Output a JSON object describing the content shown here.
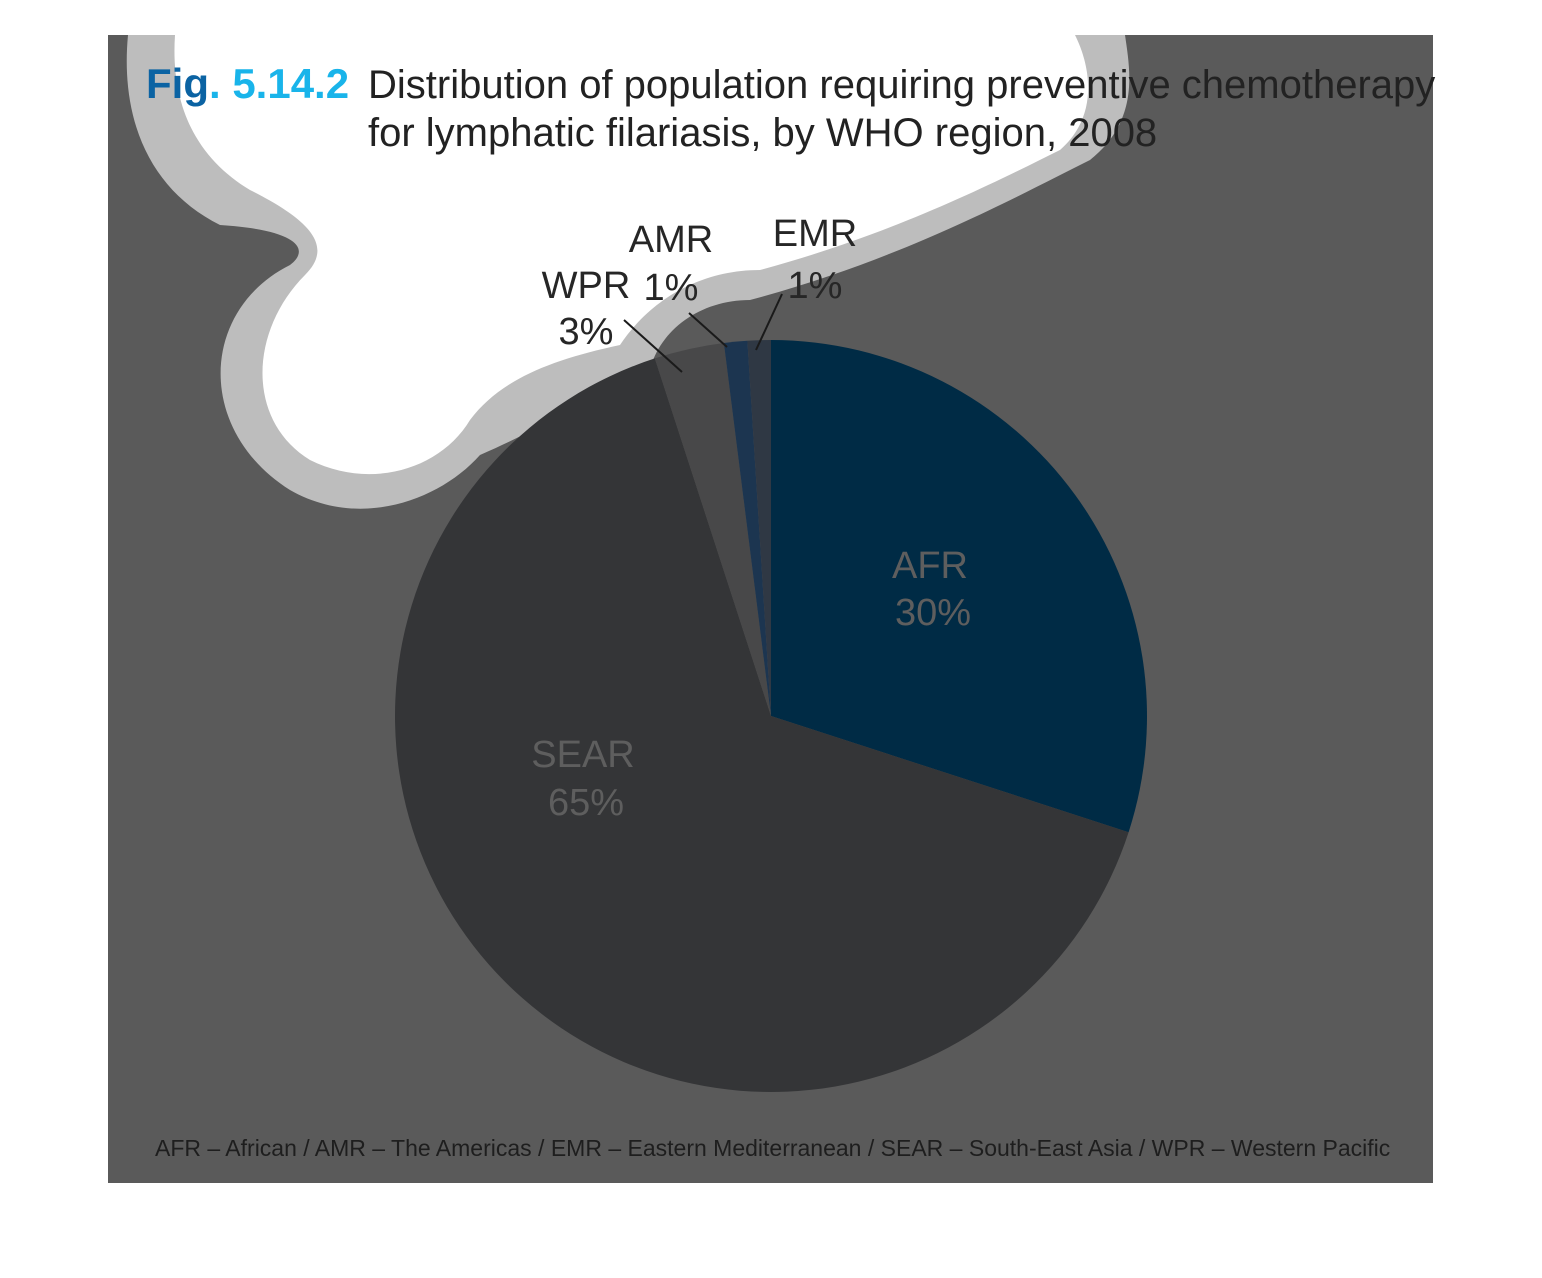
{
  "figure": {
    "number": "Fig. 5.14.2",
    "title_line1": "Distribution of population requiring preventive chemotherapy",
    "title_line2": "for lymphatic filariasis, by WHO region, 2008"
  },
  "chart_data": {
    "type": "pie",
    "title": "Distribution of population requiring preventive chemotherapy for lymphatic filariasis, by WHO region, 2008",
    "slices": [
      {
        "label": "AFR",
        "value": 30,
        "value_label": "30%",
        "color": "#002b45"
      },
      {
        "label": "SEAR",
        "value": 65,
        "value_label": "65%",
        "color": "#343537"
      },
      {
        "label": "WPR",
        "value": 3,
        "value_label": "3%",
        "color": "#484849"
      },
      {
        "label": "AMR",
        "value": 1,
        "value_label": "1%",
        "color": "#1c3550"
      },
      {
        "label": "EMR",
        "value": 1,
        "value_label": "1%",
        "color": "#2f3844"
      }
    ]
  },
  "footnote": "AFR – African / AMR – The Americas / EMR – Eastern Mediterranean / SEAR – South-East Asia / WPR – Western Pacific",
  "colors": {
    "panel": "#5a5a5a",
    "blob_fill": "#ffffff",
    "blob_outline": "#bdbdbd",
    "fig_number_dark": "#0b63a3",
    "fig_number_light": "#19b4ea"
  }
}
